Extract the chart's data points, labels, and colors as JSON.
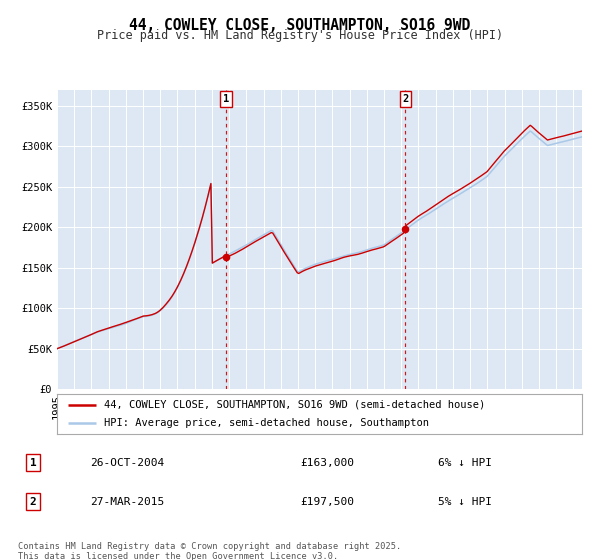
{
  "title": "44, COWLEY CLOSE, SOUTHAMPTON, SO16 9WD",
  "subtitle": "Price paid vs. HM Land Registry's House Price Index (HPI)",
  "ylabel_ticks": [
    "£0",
    "£50K",
    "£100K",
    "£150K",
    "£200K",
    "£250K",
    "£300K",
    "£350K"
  ],
  "ytick_values": [
    0,
    50000,
    100000,
    150000,
    200000,
    250000,
    300000,
    350000
  ],
  "ylim": [
    0,
    370000
  ],
  "xlim_start": 1995,
  "xlim_end": 2025.5,
  "hpi_color": "#aac8e8",
  "price_color": "#cc0000",
  "vline_color": "#cc0000",
  "bg_color": "#dde8f4",
  "grid_color": "#ffffff",
  "sale1_x": 2004.82,
  "sale1_y": 163000,
  "sale2_x": 2015.24,
  "sale2_y": 197500,
  "legend_label_price": "44, COWLEY CLOSE, SOUTHAMPTON, SO16 9WD (semi-detached house)",
  "legend_label_hpi": "HPI: Average price, semi-detached house, Southampton",
  "table_row1": [
    "1",
    "26-OCT-2004",
    "£163,000",
    "6% ↓ HPI"
  ],
  "table_row2": [
    "2",
    "27-MAR-2015",
    "£197,500",
    "5% ↓ HPI"
  ],
  "footnote": "Contains HM Land Registry data © Crown copyright and database right 2025.\nThis data is licensed under the Open Government Licence v3.0.",
  "title_fontsize": 10.5,
  "subtitle_fontsize": 8.5,
  "tick_fontsize": 7.5,
  "legend_fontsize": 7.5
}
